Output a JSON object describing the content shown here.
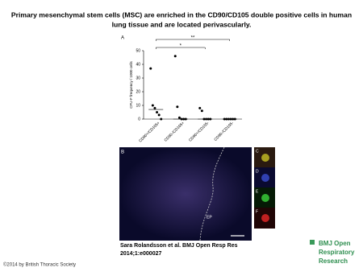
{
  "header": {
    "title": "Primary mesenchymal stem cells (MSC) are enriched in the CD90/CD105 double positive cells in human lung tissue and are located perivascularly."
  },
  "chart_data": {
    "type": "strip",
    "panel_label": "A",
    "y_label": "CFU-F frequency / 1000 cells",
    "categories": [
      "CD90+/CD105+",
      "CD90-/CD105+",
      "CD90+/CD105-",
      "CD90-/CD105-"
    ],
    "values": [
      [
        37,
        10,
        8,
        5,
        3,
        0
      ],
      [
        46,
        9,
        1,
        0,
        0,
        0
      ],
      [
        8,
        6,
        0,
        0,
        0,
        0
      ],
      [
        0,
        0,
        0,
        0,
        0,
        0
      ]
    ],
    "medians": [
      7,
      0,
      0,
      0
    ],
    "color": "#000000",
    "ylim": [
      0,
      50
    ],
    "yticks": [
      0,
      10,
      20,
      30,
      40,
      50
    ],
    "significance": [
      {
        "from": 0,
        "to": 3,
        "label": "**"
      },
      {
        "from": 0,
        "to": 2,
        "label": "*"
      }
    ]
  },
  "micrograph": {
    "panel_label": "B",
    "region_label": "EP",
    "insets": [
      "C",
      "D",
      "E",
      "F"
    ]
  },
  "citation": [
    "Sara Rolandsson et al. BMJ Open Resp Res",
    "2014;1:e000027"
  ],
  "logo": [
    "BMJ Open",
    "Respiratory",
    "Research"
  ],
  "copyright": "©2014 by British Thoracic Society"
}
